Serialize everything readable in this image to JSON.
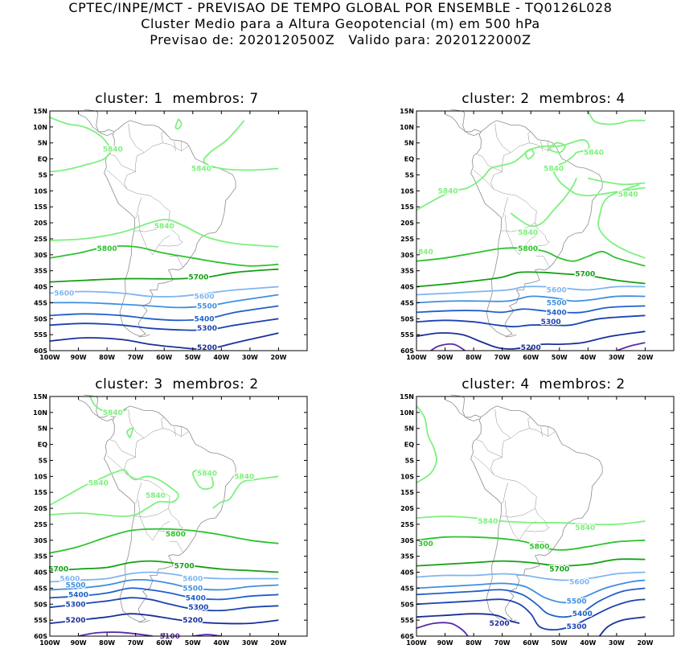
{
  "header": {
    "line1": "CPTEC/INPE/MCT - PREVISAO DE TEMPO GLOBAL POR ENSEMBLE - TQ0126L028",
    "line2": "Cluster Medio para a Altura Geopotencial (m) em 500 hPa",
    "line3": "Previsao de: 2020120500Z   Valido para: 2020122000Z"
  },
  "axes": {
    "lat_labels": [
      "15N",
      "10N",
      "5N",
      "EQ",
      "5S",
      "10S",
      "15S",
      "20S",
      "25S",
      "30S",
      "35S",
      "40S",
      "45S",
      "50S",
      "55S",
      "60S"
    ],
    "lon_labels": [
      "100W",
      "90W",
      "80W",
      "70W",
      "60W",
      "50W",
      "40W",
      "30W",
      "20W"
    ]
  },
  "colors": {
    "c5840": "#7ef07e",
    "c5800": "#2ec22e",
    "c5700": "#14a014",
    "c5600": "#7fb6f0",
    "c5500": "#3f8fe0",
    "c5400": "#2060c8",
    "c5300": "#1c44b0",
    "c5200": "#1a2f98",
    "c5100": "#5a2aa8",
    "coast": "#8c8c8c"
  },
  "panels": [
    {
      "title": "cluster: 1  membros: 7",
      "labels": [
        {
          "text": "5840",
          "lon": -78,
          "lat": 3
        },
        {
          "text": "5840",
          "lon": -47,
          "lat": -3
        },
        {
          "text": "5840",
          "lon": -60,
          "lat": -21
        },
        {
          "text": "5800",
          "lon": -80,
          "lat": -28
        },
        {
          "text": "5700",
          "lon": -48,
          "lat": -37
        },
        {
          "text": "5600",
          "lon": -95,
          "lat": -42
        },
        {
          "text": "5600",
          "lon": -46,
          "lat": -43
        },
        {
          "text": "5500",
          "lon": -45,
          "lat": -46
        },
        {
          "text": "5400",
          "lon": -46,
          "lat": -50
        },
        {
          "text": "5300",
          "lon": -45,
          "lat": -53
        },
        {
          "text": "5200",
          "lon": -45,
          "lat": -59
        }
      ]
    },
    {
      "title": "cluster: 2  membros: 4",
      "labels": [
        {
          "text": "5840",
          "lon": -38,
          "lat": 2
        },
        {
          "text": "5840",
          "lon": -52,
          "lat": -3
        },
        {
          "text": "5840",
          "lon": -89,
          "lat": -10
        },
        {
          "text": "5840",
          "lon": -26,
          "lat": -11
        },
        {
          "text": "5840",
          "lon": -61,
          "lat": -23
        },
        {
          "text": "840",
          "lon": -100,
          "lat": -29
        },
        {
          "text": "5800",
          "lon": -61,
          "lat": -28
        },
        {
          "text": "5700",
          "lon": -41,
          "lat": -36
        },
        {
          "text": "5600",
          "lon": -51,
          "lat": -41
        },
        {
          "text": "5500",
          "lon": -51,
          "lat": -45
        },
        {
          "text": "5400",
          "lon": -51,
          "lat": -48
        },
        {
          "text": "5300",
          "lon": -53,
          "lat": -51
        },
        {
          "text": "5200",
          "lon": -60,
          "lat": -59
        }
      ]
    },
    {
      "title": "cluster: 3  membros: 2",
      "labels": [
        {
          "text": "5840",
          "lon": -78,
          "lat": 10
        },
        {
          "text": "5840",
          "lon": -83,
          "lat": -12
        },
        {
          "text": "5840",
          "lon": -45,
          "lat": -9
        },
        {
          "text": "5840",
          "lon": -32,
          "lat": -10
        },
        {
          "text": "5840",
          "lon": -63,
          "lat": -16
        },
        {
          "text": "5800",
          "lon": -56,
          "lat": -28
        },
        {
          "text": "5700",
          "lon": -97,
          "lat": -39
        },
        {
          "text": "5700",
          "lon": -53,
          "lat": -38
        },
        {
          "text": "5600",
          "lon": -93,
          "lat": -42
        },
        {
          "text": "5600",
          "lon": -50,
          "lat": -42
        },
        {
          "text": "5500",
          "lon": -91,
          "lat": -44
        },
        {
          "text": "5500",
          "lon": -50,
          "lat": -45
        },
        {
          "text": "5400",
          "lon": -90,
          "lat": -47
        },
        {
          "text": "5400",
          "lon": -49,
          "lat": -48
        },
        {
          "text": "5300",
          "lon": -91,
          "lat": -50
        },
        {
          "text": "5300",
          "lon": -48,
          "lat": -51
        },
        {
          "text": "5200",
          "lon": -91,
          "lat": -55
        },
        {
          "text": "5200",
          "lon": -50,
          "lat": -55
        },
        {
          "text": "5100",
          "lon": -58,
          "lat": -60
        }
      ]
    },
    {
      "title": "cluster: 4  membros: 2",
      "labels": [
        {
          "text": "5840",
          "lon": -75,
          "lat": -24
        },
        {
          "text": "5840",
          "lon": -41,
          "lat": -26
        },
        {
          "text": "300",
          "lon": -100,
          "lat": -31
        },
        {
          "text": "5800",
          "lon": -57,
          "lat": -32
        },
        {
          "text": "5700",
          "lon": -50,
          "lat": -39
        },
        {
          "text": "5600",
          "lon": -43,
          "lat": -43
        },
        {
          "text": "5500",
          "lon": -44,
          "lat": -49
        },
        {
          "text": "5400",
          "lon": -42,
          "lat": -53
        },
        {
          "text": "5300",
          "lon": -44,
          "lat": -57
        },
        {
          "text": "5200",
          "lon": -71,
          "lat": -56
        }
      ]
    }
  ]
}
